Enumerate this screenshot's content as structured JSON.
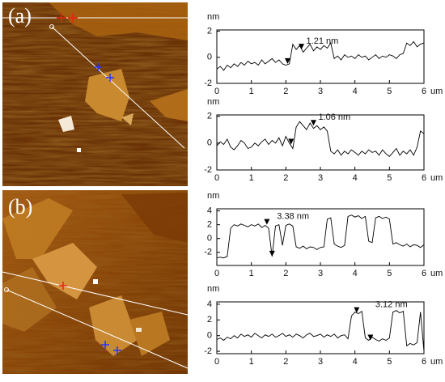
{
  "panel_labels": [
    "(a)",
    "(b)"
  ],
  "chart_data": [
    {
      "type": "line",
      "y_label": "nm",
      "x_label": "um",
      "annotation": "1.21 nm",
      "color": "#000000",
      "xlim": [
        0,
        6
      ],
      "ylim": [
        -2,
        2.1
      ],
      "xticks": [
        0,
        1,
        2,
        3,
        4,
        5,
        6
      ],
      "yticks": [
        -2,
        0,
        2
      ],
      "x": [
        0,
        0.1,
        0.2,
        0.3,
        0.4,
        0.5,
        0.6,
        0.7,
        0.8,
        0.9,
        1,
        1.1,
        1.2,
        1.3,
        1.4,
        1.5,
        1.6,
        1.7,
        1.8,
        1.9,
        2,
        2.1,
        2.2,
        2.3,
        2.4,
        2.5,
        2.6,
        2.7,
        2.8,
        2.9,
        3,
        3.1,
        3.2,
        3.3,
        3.4,
        3.5,
        3.6,
        3.7,
        3.8,
        3.9,
        4,
        4.1,
        4.2,
        4.3,
        4.4,
        4.5,
        4.6,
        4.7,
        4.8,
        4.9,
        5,
        5.1,
        5.2,
        5.3,
        5.4,
        5.5,
        5.6,
        5.7,
        5.8,
        5.9,
        6
      ],
      "values": [
        -0.9,
        -0.7,
        -1.0,
        -0.6,
        -0.8,
        -0.5,
        -0.7,
        -0.4,
        -0.6,
        -0.3,
        -0.5,
        -0.4,
        -0.6,
        -0.2,
        -0.5,
        -0.3,
        -0.1,
        -0.4,
        -0.2,
        -0.5,
        -0.6,
        -0.5,
        1.0,
        0.6,
        0.9,
        0.4,
        0.7,
        1.0,
        0.5,
        0.8,
        0.6,
        0.9,
        0.7,
        1.1,
        -0.1,
        0.1,
        -0.2,
        0.2,
        0.0,
        0.1,
        -0.1,
        0.2,
        0.0,
        0.1,
        -0.2,
        0.0,
        0.2,
        -0.1,
        0.1,
        0.0,
        0.2,
        0.1,
        -0.1,
        0.2,
        0.3,
        1.1,
        0.9,
        1.2,
        0.8,
        1.0,
        1.1
      ],
      "marker_x": [
        2.05,
        2.45
      ],
      "marker_y": [
        -0.5,
        0.6
      ]
    },
    {
      "type": "line",
      "y_label": "nm",
      "x_label": "um",
      "annotation": "1.06 nm",
      "color": "#000000",
      "xlim": [
        0,
        6
      ],
      "ylim": [
        -2,
        2.1
      ],
      "xticks": [
        0,
        1,
        2,
        3,
        4,
        5,
        6
      ],
      "yticks": [
        -2,
        0,
        2
      ],
      "x": [
        0,
        0.1,
        0.2,
        0.3,
        0.4,
        0.5,
        0.6,
        0.7,
        0.8,
        0.9,
        1,
        1.1,
        1.2,
        1.3,
        1.4,
        1.5,
        1.6,
        1.7,
        1.8,
        1.9,
        2,
        2.1,
        2.2,
        2.3,
        2.4,
        2.5,
        2.6,
        2.7,
        2.8,
        2.9,
        3,
        3.1,
        3.2,
        3.3,
        3.4,
        3.5,
        3.6,
        3.7,
        3.8,
        3.9,
        4,
        4.1,
        4.2,
        4.3,
        4.4,
        4.5,
        4.6,
        4.7,
        4.8,
        4.9,
        5,
        5.1,
        5.2,
        5.3,
        5.4,
        5.5,
        5.6,
        5.7,
        5.8,
        5.9,
        6
      ],
      "values": [
        -0.2,
        0.1,
        -0.1,
        0.3,
        -0.3,
        -0.5,
        -0.2,
        0.2,
        0.0,
        -0.4,
        -0.3,
        0.0,
        -0.2,
        0.1,
        0.3,
        -0.1,
        0.2,
        0.0,
        0.4,
        -0.2,
        0.5,
        0.0,
        -0.4,
        1.2,
        1.6,
        1.3,
        1.0,
        1.5,
        1.1,
        1.3,
        1.0,
        1.2,
        0.9,
        -0.6,
        -0.8,
        -0.5,
        -0.9,
        -0.6,
        -0.8,
        -0.5,
        -0.7,
        -0.9,
        -0.6,
        -0.8,
        -0.5,
        -0.7,
        -0.6,
        -0.9,
        -0.5,
        -0.8,
        -1.0,
        -0.7,
        -0.4,
        -0.9,
        -0.6,
        -0.8,
        -0.5,
        -0.9,
        -0.3,
        0.9,
        0.7
      ],
      "marker_x": [
        2.15,
        2.8
      ],
      "marker_y": [
        -0.1,
        1.3
      ]
    },
    {
      "type": "line",
      "y_label": "nm",
      "x_label": "um",
      "annotation": "3.38 nm",
      "color": "#000000",
      "xlim": [
        0,
        6
      ],
      "ylim": [
        -3.9,
        4.3
      ],
      "xticks": [
        0,
        1,
        2,
        3,
        4,
        5,
        6
      ],
      "yticks": [
        -2,
        0,
        2,
        4
      ],
      "x": [
        0,
        0.1,
        0.2,
        0.3,
        0.4,
        0.5,
        0.6,
        0.7,
        0.8,
        0.9,
        1,
        1.1,
        1.2,
        1.3,
        1.4,
        1.5,
        1.6,
        1.7,
        1.8,
        1.9,
        2,
        2.1,
        2.2,
        2.3,
        2.4,
        2.5,
        2.6,
        2.7,
        2.8,
        2.9,
        3,
        3.1,
        3.2,
        3.3,
        3.4,
        3.5,
        3.6,
        3.7,
        3.8,
        3.9,
        4,
        4.1,
        4.2,
        4.3,
        4.4,
        4.5,
        4.6,
        4.7,
        4.8,
        4.9,
        5,
        5.1,
        5.2,
        5.3,
        5.4,
        5.5,
        5.6,
        5.7,
        5.8,
        5.9,
        6
      ],
      "values": [
        -2.8,
        -2.7,
        -2.8,
        -2.6,
        1.5,
        2.0,
        1.8,
        2.1,
        1.9,
        1.7,
        2.0,
        1.8,
        2.1,
        1.6,
        1.9,
        1.5,
        -2.6,
        1.8,
        2.0,
        -1.0,
        1.9,
        2.1,
        1.8,
        -1.2,
        -1.4,
        -1.1,
        -1.5,
        -1.2,
        -1.3,
        -1.6,
        -1.3,
        -1.2,
        2.8,
        3.0,
        -0.8,
        -1.1,
        -1.3,
        -1.0,
        3.2,
        3.4,
        3.1,
        3.3,
        2.9,
        3.2,
        -0.4,
        -0.6,
        3.0,
        3.2,
        2.9,
        3.1,
        2.8,
        -0.8,
        -0.6,
        -0.9,
        -1.1,
        -0.8,
        -1.2,
        -0.9,
        -1.0,
        -1.3,
        -0.9
      ],
      "marker_x": [
        1.45,
        1.6
      ],
      "marker_y": [
        2.0,
        -2.6
      ]
    },
    {
      "type": "line",
      "y_label": "nm",
      "x_label": "um",
      "annotation": "3.12 nm",
      "color": "#000000",
      "xlim": [
        0,
        6
      ],
      "ylim": [
        -2.3,
        4.3
      ],
      "xticks": [
        0,
        1,
        2,
        3,
        4,
        5,
        6
      ],
      "yticks": [
        -2,
        0,
        2,
        4
      ],
      "x": [
        0,
        0.1,
        0.2,
        0.3,
        0.4,
        0.5,
        0.6,
        0.7,
        0.8,
        0.9,
        1,
        1.1,
        1.2,
        1.3,
        1.4,
        1.5,
        1.6,
        1.7,
        1.8,
        1.9,
        2,
        2.1,
        2.2,
        2.3,
        2.4,
        2.5,
        2.6,
        2.7,
        2.8,
        2.9,
        3,
        3.1,
        3.2,
        3.3,
        3.4,
        3.5,
        3.6,
        3.7,
        3.8,
        3.9,
        4,
        4.1,
        4.2,
        4.3,
        4.4,
        4.5,
        4.6,
        4.7,
        4.8,
        4.9,
        5,
        5.1,
        5.2,
        5.3,
        5.4,
        5.5,
        5.6,
        5.7,
        5.8,
        5.9,
        6
      ],
      "values": [
        -0.5,
        -0.3,
        -0.6,
        -0.2,
        -0.4,
        0.0,
        -0.3,
        0.2,
        -0.1,
        0.1,
        -0.2,
        0.3,
        0.0,
        -0.3,
        0.1,
        -0.1,
        0.2,
        -0.2,
        0.0,
        0.3,
        -0.1,
        0.1,
        -0.2,
        0.2,
        0.0,
        -0.3,
        0.1,
        0.3,
        -0.1,
        0.0,
        0.2,
        -0.2,
        0.1,
        -0.1,
        0.2,
        -0.3,
        0.0,
        0.1,
        -0.4,
        2.5,
        3.0,
        2.8,
        3.1,
        -0.3,
        -0.6,
        -0.2,
        -0.5,
        -0.7,
        -0.4,
        -0.6,
        -0.3,
        3.0,
        3.2,
        2.9,
        3.1,
        -1.3,
        -1.0,
        -1.2,
        -0.9,
        3.0,
        -2.0
      ],
      "marker_x": [
        4.05,
        4.45
      ],
      "marker_y": [
        2.9,
        -0.6
      ]
    }
  ]
}
